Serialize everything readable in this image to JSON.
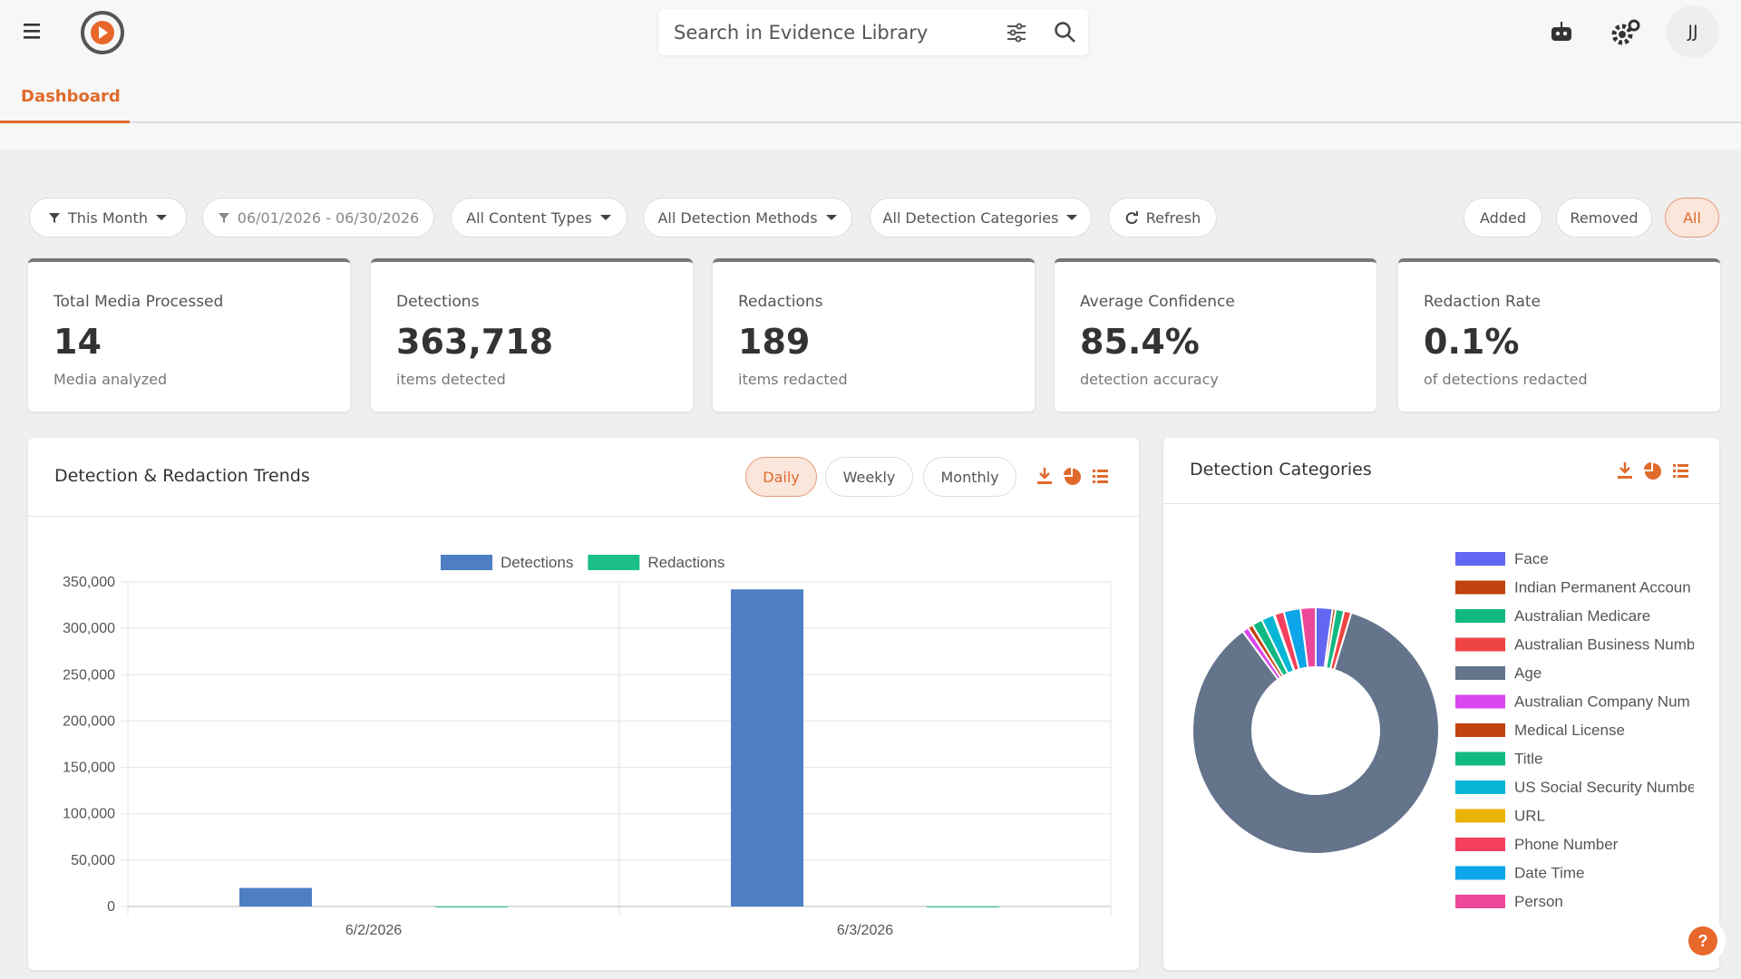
{
  "header": {
    "search_placeholder": "Search in Evidence Library",
    "avatar": "JJ",
    "tab": "Dashboard"
  },
  "filters": [
    "This Month",
    "06/01/2026 - 06/30/2026",
    "All Content Types",
    "All Detection Methods",
    "All Detection Categories",
    "Refresh"
  ],
  "view_toggle": [
    "Added",
    "Removed",
    "All"
  ],
  "stats": [
    {
      "label": "Total Media Processed",
      "value": "14",
      "note": "Media analyzed"
    },
    {
      "label": "Detections",
      "value": "363,718",
      "note": "items detected"
    },
    {
      "label": "Redactions",
      "value": "189",
      "note": "items redacted"
    },
    {
      "label": "Average Confidence",
      "value": "85.4%",
      "note": "detection accuracy"
    },
    {
      "label": "Redaction Rate",
      "value": "0.1%",
      "note": "of detections redacted"
    }
  ],
  "periods": [
    "Daily",
    "Weekly",
    "Monthly"
  ],
  "chart_data": [
    {
      "type": "bar",
      "title": "Detection & Redaction Trends",
      "categories": [
        "6/2/2026",
        "6/3/2026"
      ],
      "series": [
        {
          "name": "Detections",
          "color": "#4e7fc4",
          "values": [
            20000,
            342000
          ]
        },
        {
          "name": "Redactions",
          "color": "#1cbf8a",
          "values": [
            80,
            109
          ]
        }
      ],
      "ylim": [
        0,
        350000
      ],
      "yticks": [
        0,
        {
          "value": 50000,
          "label": "50,000"
        },
        {
          "value": 100000,
          "label": "100,000"
        },
        {
          "value": 150000,
          "label": "150,000"
        },
        {
          "value": 200000,
          "label": "200,000"
        },
        {
          "value": 250000,
          "label": "250,000"
        },
        {
          "value": 300000,
          "label": "300,000"
        },
        {
          "value": 350000,
          "label": "350,000"
        }
      ],
      "grid": true
    },
    {
      "type": "donut",
      "title": "Detection Categories",
      "categories": [
        "Face",
        "Indian Permanent Accoun",
        "Australian Medicare",
        "Australian Business Numb",
        "Age",
        "Australian Company Num",
        "Medical License",
        "Title",
        "US Social Security Numbe",
        "URL",
        "Phone Number",
        "Date Time",
        "Person"
      ],
      "values": [
        8000,
        1500,
        4000,
        3500,
        310000,
        3000,
        2500,
        5000,
        6000,
        500,
        4500,
        8000,
        7218
      ],
      "colors": [
        "#6366f1",
        "#c2410c",
        "#10b981",
        "#ef4444",
        "#64748b",
        "#d946ef",
        "#c2410c",
        "#10b981",
        "#06b6d4",
        "#eab308",
        "#f43f5e",
        "#0ea5e9",
        "#ec4899"
      ]
    }
  ]
}
